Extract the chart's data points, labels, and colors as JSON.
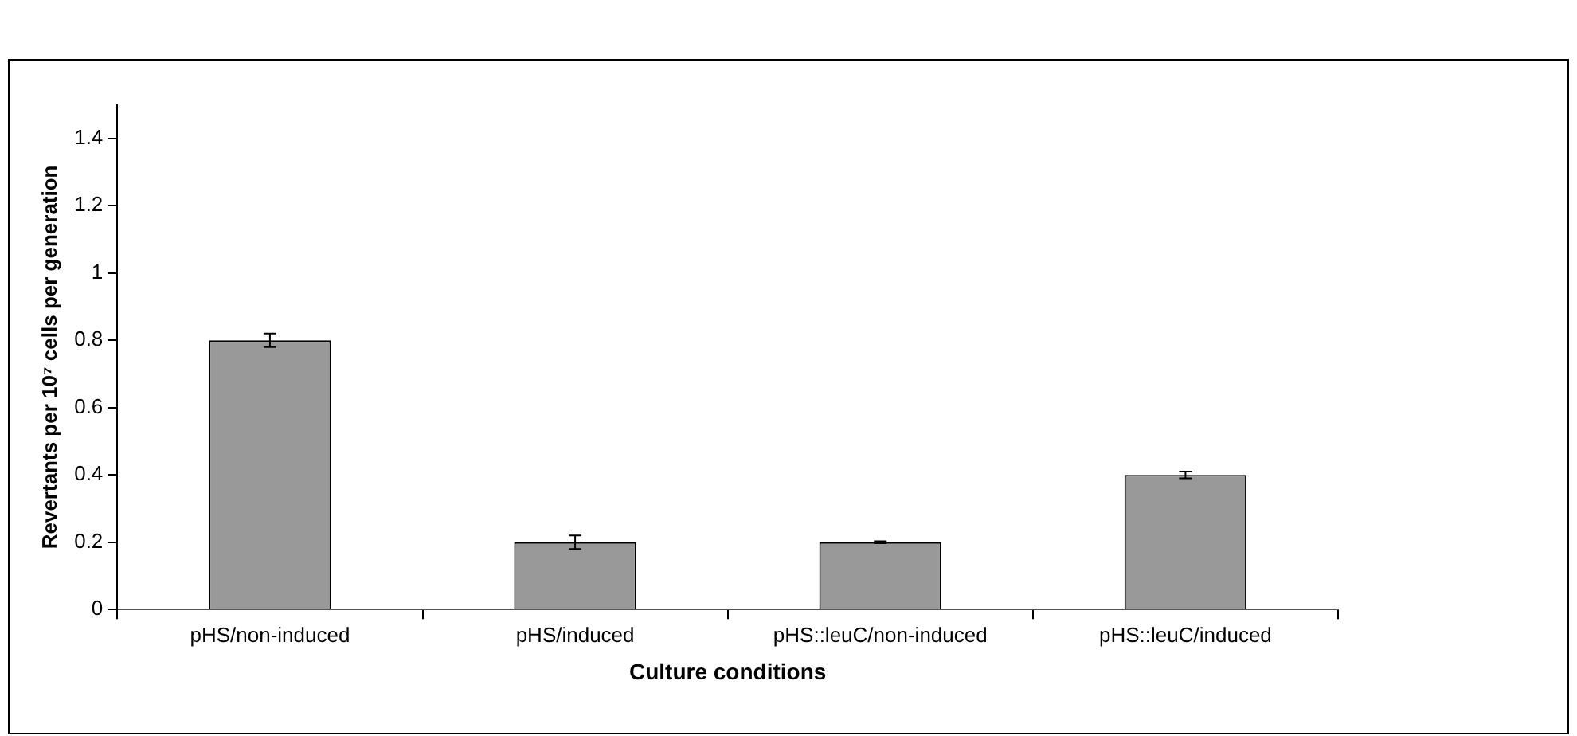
{
  "chart_data": {
    "type": "bar",
    "xlabel": "Culture conditions",
    "ylabel": "Revertants per 10⁷ cells per generation",
    "categories": [
      "pHS/non-induced",
      "pHS/induced",
      "pHS::leuC/non-induced",
      "pHS::leuC/induced"
    ],
    "values": [
      0.8,
      0.2,
      0.2,
      0.4
    ],
    "errors": [
      0.02,
      0.02,
      0.003,
      0.01
    ],
    "color": "#999999",
    "ylim": [
      0,
      1.5
    ],
    "yticks": [
      0,
      0.2,
      0.4,
      0.6,
      0.8,
      1,
      1.2,
      1.4
    ],
    "grid": false,
    "legend": false
  }
}
